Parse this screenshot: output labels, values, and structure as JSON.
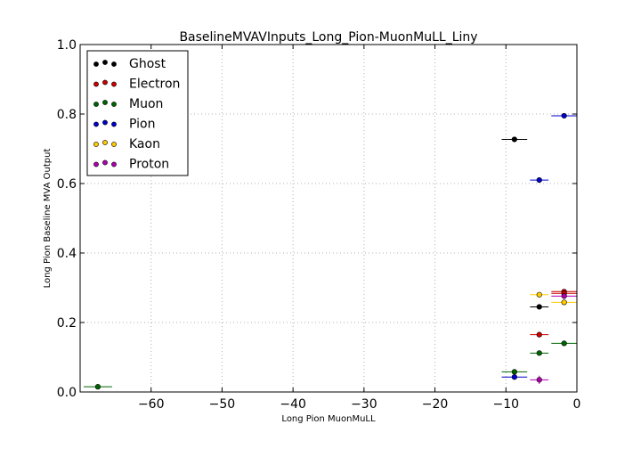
{
  "chart_data": {
    "type": "scatter",
    "title": "BaselineMVAVInputs_Long_Pion-MuonMuLL_Liny",
    "xlabel": "Long Pion MuonMuLL",
    "ylabel": "Long Pion Baseline MVA Output",
    "xlim": [
      -70,
      0
    ],
    "ylim": [
      0,
      1.0
    ],
    "xticks": [
      -60,
      -50,
      -40,
      -30,
      -20,
      -10,
      0
    ],
    "xtick_labels": [
      "−60",
      "−50",
      "−40",
      "−30",
      "−20",
      "−10",
      "0"
    ],
    "yticks": [
      0,
      0.2,
      0.4,
      0.6,
      0.8,
      1.0
    ],
    "ytick_labels": [
      "0.0",
      "0.2",
      "0.4",
      "0.6",
      "0.8",
      "1.0"
    ],
    "grid": true,
    "legend_position": "top-left",
    "series": [
      {
        "name": "Ghost",
        "color": "#000000",
        "points": [
          {
            "x": -8.8,
            "y": 0.727,
            "xerr": 1.8,
            "yerr": 0.006
          },
          {
            "x": -5.3,
            "y": 0.245,
            "xerr": 1.3,
            "yerr": 0.005
          }
        ]
      },
      {
        "name": "Electron",
        "color": "#cc0000",
        "points": [
          {
            "x": -5.3,
            "y": 0.165,
            "xerr": 1.3,
            "yerr": 0.005
          },
          {
            "x": -1.8,
            "y": 0.289,
            "xerr": 1.8,
            "yerr": 0.005
          },
          {
            "x": -1.8,
            "y": 0.284,
            "xerr": 1.8,
            "yerr": 0.004
          }
        ]
      },
      {
        "name": "Muon",
        "color": "#006400",
        "points": [
          {
            "x": -67.5,
            "y": 0.015,
            "xerr": 2.0,
            "yerr": 0.003
          },
          {
            "x": -8.8,
            "y": 0.058,
            "xerr": 1.8,
            "yerr": 0.005
          },
          {
            "x": -5.3,
            "y": 0.112,
            "xerr": 1.3,
            "yerr": 0.005
          },
          {
            "x": -1.8,
            "y": 0.14,
            "xerr": 1.8,
            "yerr": 0.004
          }
        ]
      },
      {
        "name": "Pion",
        "color": "#0000cc",
        "points": [
          {
            "x": -1.8,
            "y": 0.795,
            "xerr": 1.8,
            "yerr": 0.004
          },
          {
            "x": -5.3,
            "y": 0.61,
            "xerr": 1.3,
            "yerr": 0.005
          },
          {
            "x": -8.8,
            "y": 0.043,
            "xerr": 1.8,
            "yerr": 0.004
          }
        ]
      },
      {
        "name": "Kaon",
        "color": "#ffcc00",
        "points": [
          {
            "x": -5.3,
            "y": 0.28,
            "xerr": 1.3,
            "yerr": 0.008
          },
          {
            "x": -1.8,
            "y": 0.258,
            "xerr": 1.8,
            "yerr": 0.005
          }
        ]
      },
      {
        "name": "Proton",
        "color": "#b000b0",
        "points": [
          {
            "x": -5.3,
            "y": 0.035,
            "xerr": 1.3,
            "yerr": 0.012
          },
          {
            "x": -1.8,
            "y": 0.276,
            "xerr": 1.8,
            "yerr": 0.006
          }
        ]
      }
    ]
  }
}
